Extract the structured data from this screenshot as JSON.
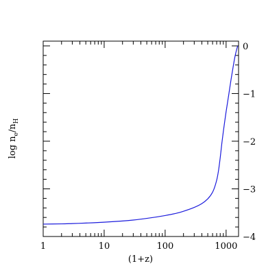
{
  "chart_data": {
    "type": "line",
    "title": "",
    "xlabel": "(1+z)",
    "ylabel_main": "log n",
    "ylabel_sub1": "e",
    "ylabel_slash": "/n",
    "ylabel_sub2": "H",
    "xscale": "log",
    "xlim": [
      1,
      1600
    ],
    "ylim": [
      -4,
      0.1
    ],
    "x_ticks": [
      1,
      10,
      100,
      1000
    ],
    "x_tick_labels": [
      "1",
      "10",
      "100",
      "1000"
    ],
    "y_ticks": [
      0,
      -1,
      -2,
      -3,
      -4
    ],
    "y_tick_labels": [
      "0",
      "−1",
      "−2",
      "−3",
      "−4"
    ],
    "grid": false,
    "legend": "none",
    "series": [
      {
        "color": "#1a1adc",
        "x": [
          1,
          2,
          3,
          5,
          10,
          20,
          30,
          50,
          100,
          150,
          200,
          300,
          400,
          500,
          600,
          700,
          750,
          800,
          850,
          900,
          950,
          1000,
          1100,
          1200,
          1300,
          1400,
          1500,
          1550
        ],
        "y": [
          -3.74,
          -3.735,
          -3.728,
          -3.718,
          -3.7,
          -3.675,
          -3.655,
          -3.62,
          -3.56,
          -3.515,
          -3.47,
          -3.39,
          -3.31,
          -3.21,
          -3.07,
          -2.82,
          -2.62,
          -2.35,
          -2.05,
          -1.8,
          -1.58,
          -1.38,
          -1.04,
          -0.72,
          -0.45,
          -0.22,
          -0.06,
          0.0
        ]
      }
    ]
  }
}
